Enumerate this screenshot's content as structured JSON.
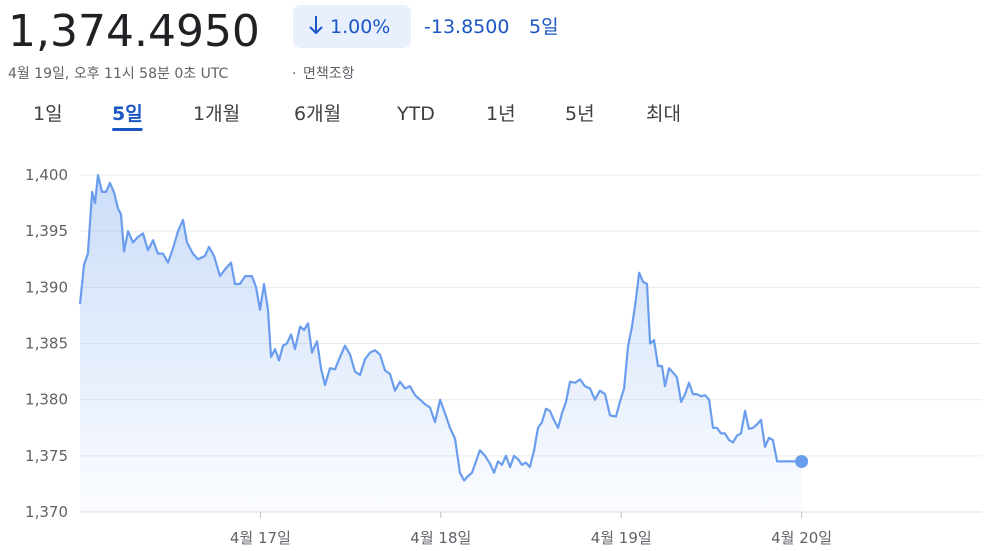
{
  "header": {
    "price": "1,374.4950",
    "change_percent": "1.00%",
    "change_value": "-13.8500",
    "change_period": "5일",
    "timestamp": "4월 19일, 오후 11시 58분 0초 UTC",
    "disclaimer": "면책조항"
  },
  "tabs": {
    "items": [
      "1일",
      "5일",
      "1개월",
      "6개월",
      "YTD",
      "1년",
      "5년",
      "최대"
    ],
    "selected": 1
  },
  "chart_data": {
    "type": "line",
    "color": "#6a9ded",
    "grid": true,
    "xlim": [
      16,
      21
    ],
    "xticks": [
      {
        "value": 17,
        "label": "4월 17일"
      },
      {
        "value": 18,
        "label": "4월 18일"
      },
      {
        "value": 19,
        "label": "4월 19일"
      },
      {
        "value": 20,
        "label": "4월 20일"
      }
    ],
    "ylim": [
      1370,
      1400
    ],
    "yticks": [
      {
        "value": 1370,
        "label": "1,370"
      },
      {
        "value": 1375,
        "label": "1,375"
      },
      {
        "value": 1380,
        "label": "1,380"
      },
      {
        "value": 1385,
        "label": "1,385"
      },
      {
        "value": 1390,
        "label": "1,390"
      },
      {
        "value": 1395,
        "label": "1,395"
      },
      {
        "value": 1400,
        "label": "1,400"
      }
    ],
    "x": [
      16,
      16.022,
      16.044,
      16.067,
      16.083,
      16.1,
      16.122,
      16.144,
      16.166,
      16.188,
      16.211,
      16.227,
      16.244,
      16.266,
      16.294,
      16.322,
      16.349,
      16.377,
      16.405,
      16.432,
      16.46,
      16.488,
      16.516,
      16.543,
      16.571,
      16.593,
      16.626,
      16.654,
      16.693,
      16.715,
      16.743,
      16.776,
      16.804,
      16.837,
      16.859,
      16.887,
      16.915,
      16.953,
      16.976,
      16.998,
      17.02,
      17.042,
      17.059,
      17.081,
      17.103,
      17.125,
      17.147,
      17.17,
      17.192,
      17.22,
      17.242,
      17.264,
      17.286,
      17.314,
      17.336,
      17.358,
      17.386,
      17.414,
      17.441,
      17.469,
      17.497,
      17.524,
      17.552,
      17.58,
      17.608,
      17.635,
      17.663,
      17.691,
      17.718,
      17.746,
      17.774,
      17.802,
      17.829,
      17.857,
      17.885,
      17.912,
      17.94,
      17.968,
      17.996,
      18.023,
      18.051,
      18.079,
      18.106,
      18.129,
      18.151,
      18.173,
      18.195,
      18.217,
      18.245,
      18.273,
      18.295,
      18.317,
      18.339,
      18.361,
      18.384,
      18.406,
      18.428,
      18.45,
      18.472,
      18.494,
      18.517,
      18.539,
      18.561,
      18.583,
      18.605,
      18.627,
      18.65,
      18.672,
      18.694,
      18.716,
      18.744,
      18.772,
      18.799,
      18.827,
      18.855,
      18.882,
      18.91,
      18.938,
      18.971,
      18.993,
      19.016,
      19.038,
      19.06,
      19.082,
      19.099,
      19.121,
      19.143,
      19.16,
      19.182,
      19.204,
      19.226,
      19.243,
      19.265,
      19.288,
      19.309,
      19.332,
      19.354,
      19.376,
      19.398,
      19.42,
      19.442,
      19.465,
      19.487,
      19.509,
      19.531,
      19.553,
      19.575,
      19.598,
      19.62,
      19.642,
      19.664,
      19.686,
      19.708,
      19.731,
      19.753,
      19.775,
      19.797,
      19.819,
      19.841,
      19.864,
      19.886,
      19.936,
      19.991,
      20
    ],
    "values": [
      1388.5,
      1392,
      1393,
      1398.5,
      1397.5,
      1400,
      1398.5,
      1398.5,
      1399.3,
      1398.5,
      1397,
      1396.5,
      1393.2,
      1395,
      1394,
      1394.5,
      1394.8,
      1393.3,
      1394.2,
      1393,
      1393,
      1392.2,
      1393.5,
      1395,
      1396,
      1394,
      1393,
      1392.5,
      1392.8,
      1393.6,
      1392.8,
      1391,
      1391.6,
      1392.2,
      1390.3,
      1390.3,
      1391,
      1391,
      1390,
      1388,
      1390.3,
      1388,
      1383.8,
      1384.5,
      1383.5,
      1384.8,
      1385,
      1385.8,
      1384.5,
      1386.5,
      1386.2,
      1386.8,
      1384.2,
      1385.2,
      1382.8,
      1381.3,
      1382.8,
      1382.7,
      1383.8,
      1384.8,
      1384,
      1382.5,
      1382.2,
      1383.6,
      1384.2,
      1384.4,
      1384,
      1382.6,
      1382.3,
      1380.8,
      1381.6,
      1381,
      1381.2,
      1380.4,
      1380,
      1379.6,
      1379.3,
      1378,
      1380,
      1378.8,
      1377.5,
      1376.5,
      1373.5,
      1372.8,
      1373.2,
      1373.5,
      1374.5,
      1375.5,
      1375,
      1374.3,
      1373.5,
      1374.5,
      1374.2,
      1375,
      1374,
      1375,
      1374.7,
      1374.2,
      1374.4,
      1374,
      1375.5,
      1377.5,
      1378,
      1379.2,
      1379,
      1378.2,
      1377.5,
      1378.8,
      1379.8,
      1381.6,
      1381.5,
      1381.8,
      1381.2,
      1381,
      1380,
      1380.8,
      1380.5,
      1378.6,
      1378.5,
      1379.8,
      1381,
      1384.8,
      1386.5,
      1389,
      1391.3,
      1390.5,
      1390.3,
      1385,
      1385.3,
      1383,
      1383,
      1381.2,
      1382.8,
      1382.4,
      1382,
      1379.8,
      1380.5,
      1381.5,
      1380.5,
      1380.5,
      1380.3,
      1380.4,
      1380,
      1377.5,
      1377.5,
      1377,
      1377,
      1376.4,
      1376.2,
      1376.8,
      1377,
      1379,
      1377.4,
      1377.5,
      1377.8,
      1378.2,
      1375.8,
      1376.6,
      1376.4,
      1374.5,
      1374.5,
      1374.5,
      1374.5,
      1374.495
    ]
  }
}
